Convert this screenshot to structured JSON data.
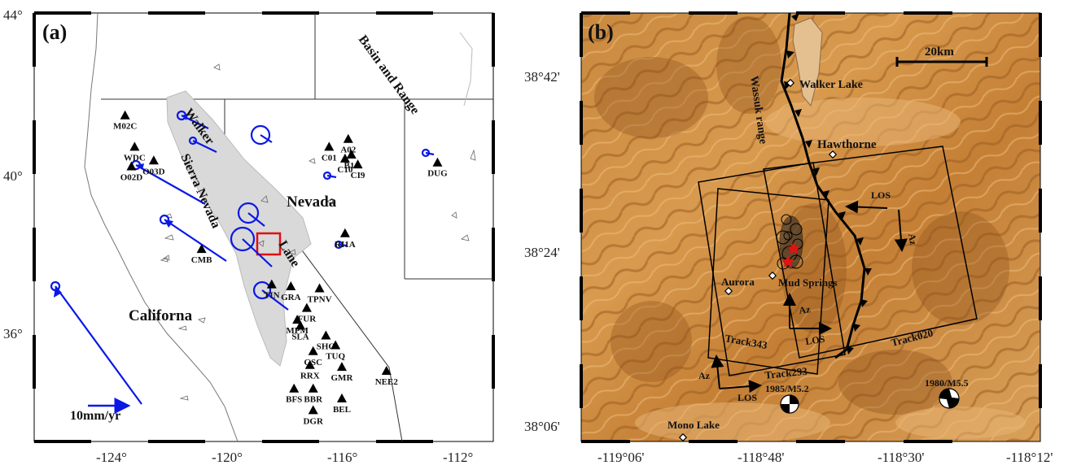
{
  "panel_a": {
    "label": "(a)",
    "lat_ticks": [
      "44°",
      "40°",
      "36°"
    ],
    "lon_ticks": [
      "-124°",
      "-120°",
      "-116°",
      "-112°"
    ],
    "regions": {
      "basin": "Basin and Range",
      "walker": "Walker",
      "sierra": "Sierra Nevada",
      "lane": "Lane",
      "nevada": "Nevada",
      "california": "Californa"
    },
    "scale_label": "10mm/yr",
    "stations": [
      {
        "name": "M02C",
        "lon": -122.8,
        "lat": 41.4
      },
      {
        "name": "WDC",
        "lon": -122.5,
        "lat": 40.6
      },
      {
        "name": "O03D",
        "lon": -121.9,
        "lat": 40.25
      },
      {
        "name": "O02D",
        "lon": -122.6,
        "lat": 40.1
      },
      {
        "name": "CMB",
        "lon": -120.4,
        "lat": 38.0
      },
      {
        "name": "A02",
        "lon": -115.8,
        "lat": 40.8
      },
      {
        "name": "C01",
        "lon": -116.4,
        "lat": 40.6
      },
      {
        "name": "B14",
        "lon": -115.7,
        "lat": 40.4
      },
      {
        "name": "C10",
        "lon": -115.9,
        "lat": 40.3
      },
      {
        "name": "CI9",
        "lon": -115.5,
        "lat": 40.15
      },
      {
        "name": "DUG",
        "lon": -113.0,
        "lat": 40.2
      },
      {
        "name": "RI1A",
        "lon": -115.9,
        "lat": 38.4
      },
      {
        "name": "TIN",
        "lon": -118.2,
        "lat": 37.1
      },
      {
        "name": "GRA",
        "lon": -117.6,
        "lat": 37.05
      },
      {
        "name": "TPNV",
        "lon": -116.7,
        "lat": 37.0
      },
      {
        "name": "FUR",
        "lon": -117.1,
        "lat": 36.5
      },
      {
        "name": "MPM",
        "lon": -117.4,
        "lat": 36.2
      },
      {
        "name": "SLA",
        "lon": -117.3,
        "lat": 36.05
      },
      {
        "name": "SHO",
        "lon": -116.5,
        "lat": 35.8
      },
      {
        "name": "TUQ",
        "lon": -116.2,
        "lat": 35.55
      },
      {
        "name": "GSC",
        "lon": -116.9,
        "lat": 35.4
      },
      {
        "name": "RRX",
        "lon": -117.0,
        "lat": 35.05
      },
      {
        "name": "GMR",
        "lon": -116.0,
        "lat": 35.0
      },
      {
        "name": "NEE2",
        "lon": -114.6,
        "lat": 34.9
      },
      {
        "name": "BFS",
        "lon": -117.5,
        "lat": 34.45
      },
      {
        "name": "BBR",
        "lon": -116.9,
        "lat": 34.45
      },
      {
        "name": "BEL",
        "lon": -116.0,
        "lat": 34.2
      },
      {
        "name": "DGR",
        "lon": -116.9,
        "lat": 33.9
      }
    ]
  },
  "panel_b": {
    "label": "(b)",
    "lat_ticks": [
      "38°42'",
      "38°24'",
      "38°06'"
    ],
    "lon_ticks": [
      "-119°06'",
      "-118°48'",
      "-118°30'",
      "-118°12'"
    ],
    "scale_label": "20km",
    "places": {
      "walker_lake": "Walker Lake",
      "hawthorne": "Hawthorne",
      "aurora": "Aurora",
      "mud_springs": "Mud Springs",
      "mono_lake": "Mono Lake"
    },
    "wassuk": "Wassuk range",
    "tracks": {
      "t343": "Track343",
      "t293": "Track293",
      "t020": "Track020"
    },
    "los": "LOS",
    "az": "Az",
    "events": {
      "e1985": "1985/M5.2",
      "e1980": "1980/M5.5"
    }
  }
}
